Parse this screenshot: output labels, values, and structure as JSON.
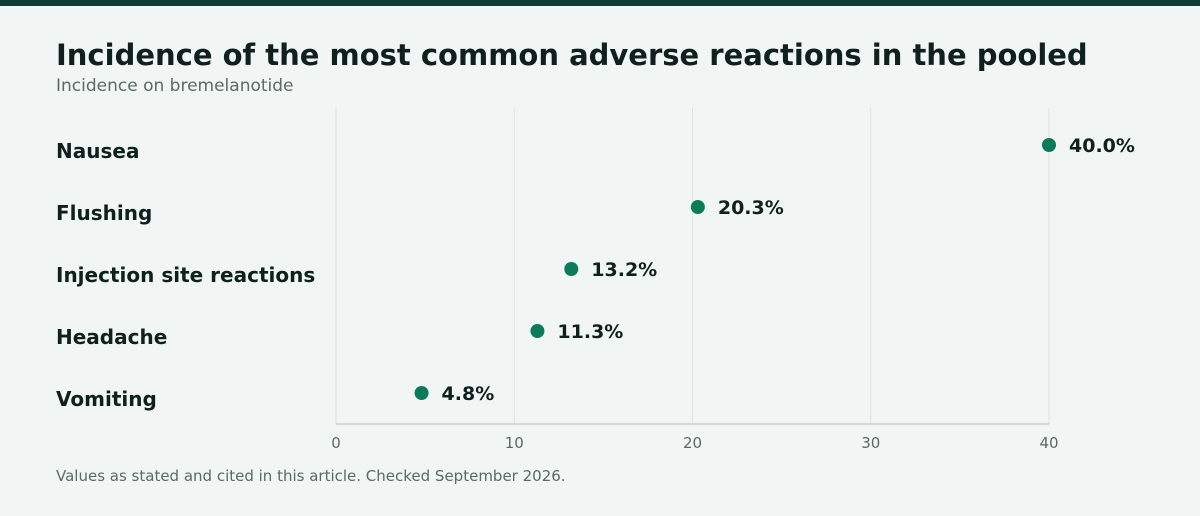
{
  "title": "Incidence of the most common adverse reactions in the pooled",
  "subtitle": "Incidence on bremelanotide",
  "footnote": "Values as stated and cited in this article. Checked September 2026.",
  "colors": {
    "accent": "#0e7a5a",
    "top_bar": "#0f3b38",
    "background": "#f1f6f4"
  },
  "chart_data": {
    "type": "scatter",
    "categories": [
      "Nausea",
      "Flushing",
      "Injection site reactions",
      "Headache",
      "Vomiting"
    ],
    "values": [
      40.0,
      20.3,
      13.2,
      11.3,
      4.8
    ],
    "value_labels": [
      "40.0%",
      "20.3%",
      "13.2%",
      "11.3%",
      "4.8%"
    ],
    "x_ticks": [
      0,
      10,
      20,
      30,
      40
    ],
    "xlim": [
      0,
      40
    ],
    "grid": true,
    "legend": "none"
  }
}
